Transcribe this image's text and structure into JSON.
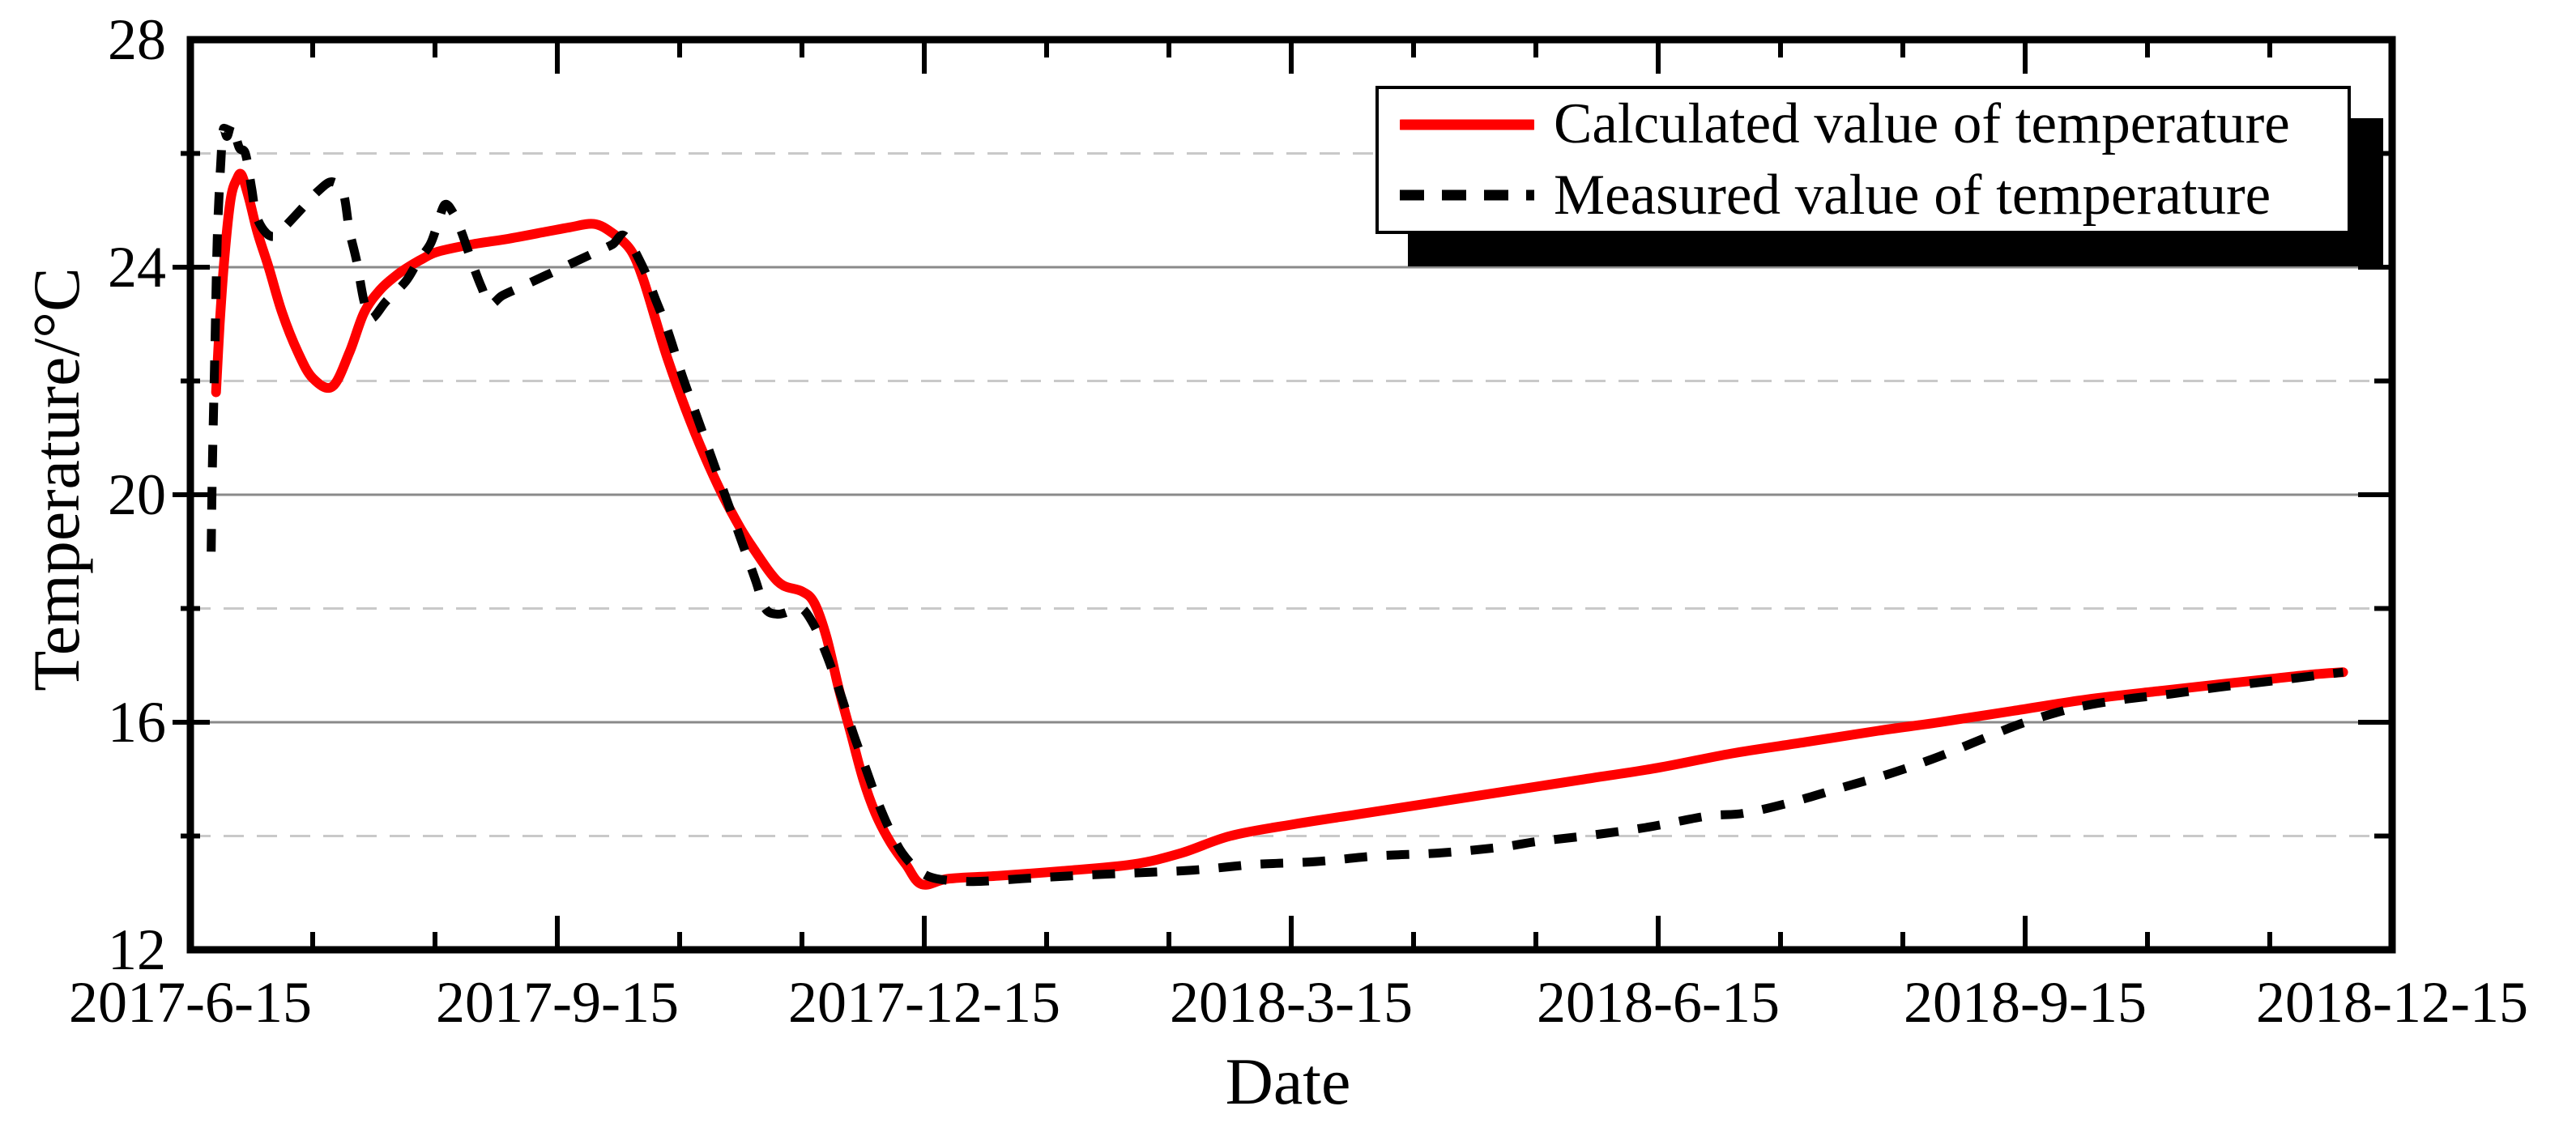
{
  "colors": {
    "background": "#ffffff",
    "axis_frame": "#000000",
    "major_gridline": "#8a8a8a",
    "minor_gridline": "#c9c9c9",
    "calculated_line": "#ff0000",
    "measured_line": "#000000",
    "legend_shadow": "#000000"
  },
  "chart_data": {
    "type": "line",
    "title": "",
    "xlabel": "Date",
    "ylabel": "Temperature/°C",
    "x_axis_unit": "months since 2017-6-15",
    "xlim_months": [
      0,
      18
    ],
    "ylim": [
      12,
      28
    ],
    "grid": "on",
    "x_ticks": {
      "major": [
        {
          "m": 0,
          "label": "2017-6-15"
        },
        {
          "m": 3,
          "label": "2017-9-15"
        },
        {
          "m": 6,
          "label": "2017-12-15"
        },
        {
          "m": 9,
          "label": "2018-3-15"
        },
        {
          "m": 12,
          "label": "2018-6-15"
        },
        {
          "m": 15,
          "label": "2018-9-15"
        },
        {
          "m": 18,
          "label": "2018-12-15"
        }
      ],
      "minor_months": [
        1,
        2,
        4,
        5,
        7,
        8,
        10,
        11,
        13,
        14,
        16,
        17
      ]
    },
    "y_ticks": {
      "labels": [
        {
          "v": 28,
          "label": "28"
        },
        {
          "v": 24,
          "label": "24"
        },
        {
          "v": 20,
          "label": "20"
        },
        {
          "v": 16,
          "label": "16"
        },
        {
          "v": 12,
          "label": "12"
        }
      ],
      "major_mark_values": [
        16,
        20,
        24
      ],
      "minor_mark_values": [
        14,
        18,
        22,
        26
      ]
    },
    "gridlines": {
      "solid_at": [
        16,
        20,
        24
      ],
      "dashed_at": [
        14,
        18,
        22,
        26
      ]
    },
    "legend": {
      "position": "top-right",
      "items": [
        {
          "label": "Calculated value of temperature",
          "line_style": "solid",
          "color": "#ff0000"
        },
        {
          "label": "Measured value of temperature",
          "line_style": "dashed",
          "color": "#000000"
        }
      ]
    },
    "series": [
      {
        "name": "Calculated value of temperature",
        "color": "#ff0000",
        "line_style": "solid",
        "points": [
          [
            0.21,
            21.8
          ],
          [
            0.24,
            23.0
          ],
          [
            0.28,
            24.2
          ],
          [
            0.33,
            25.2
          ],
          [
            0.38,
            25.55
          ],
          [
            0.42,
            25.62
          ],
          [
            0.48,
            25.2
          ],
          [
            0.55,
            24.6
          ],
          [
            0.64,
            24.0
          ],
          [
            0.75,
            23.2
          ],
          [
            0.88,
            22.5
          ],
          [
            1.0,
            22.05
          ],
          [
            1.16,
            21.9
          ],
          [
            1.3,
            22.5
          ],
          [
            1.42,
            23.2
          ],
          [
            1.55,
            23.6
          ],
          [
            1.68,
            23.85
          ],
          [
            1.78,
            24.0
          ],
          [
            1.9,
            24.15
          ],
          [
            2.02,
            24.27
          ],
          [
            2.3,
            24.4
          ],
          [
            2.6,
            24.5
          ],
          [
            2.9,
            24.62
          ],
          [
            3.1,
            24.7
          ],
          [
            3.3,
            24.76
          ],
          [
            3.45,
            24.6
          ],
          [
            3.6,
            24.3
          ],
          [
            3.7,
            23.8
          ],
          [
            3.8,
            23.1
          ],
          [
            3.9,
            22.4
          ],
          [
            4.05,
            21.5
          ],
          [
            4.2,
            20.7
          ],
          [
            4.35,
            20.0
          ],
          [
            4.5,
            19.4
          ],
          [
            4.62,
            19.0
          ],
          [
            4.75,
            18.6
          ],
          [
            4.85,
            18.4
          ],
          [
            5.0,
            18.3
          ],
          [
            5.1,
            18.1
          ],
          [
            5.2,
            17.5
          ],
          [
            5.3,
            16.6
          ],
          [
            5.4,
            15.8
          ],
          [
            5.5,
            15.0
          ],
          [
            5.6,
            14.4
          ],
          [
            5.72,
            13.9
          ],
          [
            5.85,
            13.5
          ],
          [
            5.98,
            13.15
          ],
          [
            6.2,
            13.25
          ],
          [
            6.6,
            13.3
          ],
          [
            7.1,
            13.38
          ],
          [
            7.7,
            13.5
          ],
          [
            8.1,
            13.7
          ],
          [
            8.5,
            14.0
          ],
          [
            9.0,
            14.2
          ],
          [
            9.6,
            14.4
          ],
          [
            10.2,
            14.6
          ],
          [
            10.8,
            14.8
          ],
          [
            11.4,
            15.0
          ],
          [
            12.0,
            15.2
          ],
          [
            12.6,
            15.45
          ],
          [
            13.2,
            15.65
          ],
          [
            13.8,
            15.85
          ],
          [
            14.3,
            16.0
          ],
          [
            14.9,
            16.2
          ],
          [
            15.5,
            16.4
          ],
          [
            16.1,
            16.55
          ],
          [
            16.6,
            16.67
          ],
          [
            17.0,
            16.76
          ],
          [
            17.35,
            16.84
          ],
          [
            17.6,
            16.88
          ]
        ]
      },
      {
        "name": "Measured value of temperature",
        "color": "#000000",
        "line_style": "dashed",
        "points": [
          [
            0.17,
            19.0
          ],
          [
            0.18,
            20.5
          ],
          [
            0.2,
            22.5
          ],
          [
            0.22,
            24.5
          ],
          [
            0.25,
            25.9
          ],
          [
            0.27,
            26.43
          ],
          [
            0.3,
            26.3
          ],
          [
            0.34,
            26.5
          ],
          [
            0.4,
            26.1
          ],
          [
            0.45,
            26.0
          ],
          [
            0.5,
            25.4
          ],
          [
            0.54,
            24.9
          ],
          [
            0.62,
            24.6
          ],
          [
            0.7,
            24.55
          ],
          [
            0.79,
            24.75
          ],
          [
            0.92,
            25.05
          ],
          [
            1.05,
            25.35
          ],
          [
            1.16,
            25.5
          ],
          [
            1.25,
            25.3
          ],
          [
            1.3,
            24.65
          ],
          [
            1.36,
            24.1
          ],
          [
            1.42,
            23.4
          ],
          [
            1.48,
            23.1
          ],
          [
            1.6,
            23.4
          ],
          [
            1.76,
            23.75
          ],
          [
            1.86,
            24.1
          ],
          [
            1.96,
            24.4
          ],
          [
            2.02,
            24.75
          ],
          [
            2.08,
            25.1
          ],
          [
            2.15,
            24.95
          ],
          [
            2.22,
            24.6
          ],
          [
            2.3,
            24.1
          ],
          [
            2.38,
            23.65
          ],
          [
            2.45,
            23.35
          ],
          [
            2.55,
            23.5
          ],
          [
            2.7,
            23.65
          ],
          [
            2.9,
            23.85
          ],
          [
            3.1,
            24.05
          ],
          [
            3.3,
            24.25
          ],
          [
            3.45,
            24.4
          ],
          [
            3.55,
            24.55
          ],
          [
            3.7,
            24.0
          ],
          [
            3.8,
            23.45
          ],
          [
            3.9,
            22.9
          ],
          [
            4.02,
            22.1
          ],
          [
            4.12,
            21.5
          ],
          [
            4.22,
            20.9
          ],
          [
            4.32,
            20.3
          ],
          [
            4.42,
            19.7
          ],
          [
            4.52,
            19.1
          ],
          [
            4.62,
            18.5
          ],
          [
            4.7,
            18.0
          ],
          [
            4.8,
            17.9
          ],
          [
            4.9,
            17.95
          ],
          [
            5.0,
            18.0
          ],
          [
            5.1,
            17.7
          ],
          [
            5.18,
            17.3
          ],
          [
            5.25,
            16.9
          ],
          [
            5.33,
            16.4
          ],
          [
            5.42,
            15.8
          ],
          [
            5.52,
            15.2
          ],
          [
            5.62,
            14.6
          ],
          [
            5.72,
            14.1
          ],
          [
            5.82,
            13.7
          ],
          [
            5.95,
            13.4
          ],
          [
            6.1,
            13.25
          ],
          [
            6.4,
            13.2
          ],
          [
            6.8,
            13.25
          ],
          [
            7.2,
            13.3
          ],
          [
            7.7,
            13.35
          ],
          [
            8.2,
            13.4
          ],
          [
            8.7,
            13.5
          ],
          [
            9.2,
            13.55
          ],
          [
            9.7,
            13.65
          ],
          [
            10.2,
            13.7
          ],
          [
            10.7,
            13.8
          ],
          [
            11.0,
            13.9
          ],
          [
            11.4,
            14.0
          ],
          [
            11.9,
            14.15
          ],
          [
            12.4,
            14.35
          ],
          [
            12.7,
            14.4
          ],
          [
            13.1,
            14.6
          ],
          [
            13.5,
            14.85
          ],
          [
            13.9,
            15.1
          ],
          [
            14.3,
            15.4
          ],
          [
            14.7,
            15.75
          ],
          [
            15.0,
            16.0
          ],
          [
            15.4,
            16.25
          ],
          [
            15.8,
            16.4
          ],
          [
            16.2,
            16.5
          ],
          [
            16.6,
            16.62
          ],
          [
            17.0,
            16.72
          ],
          [
            17.3,
            16.8
          ],
          [
            17.6,
            16.88
          ]
        ]
      }
    ]
  }
}
